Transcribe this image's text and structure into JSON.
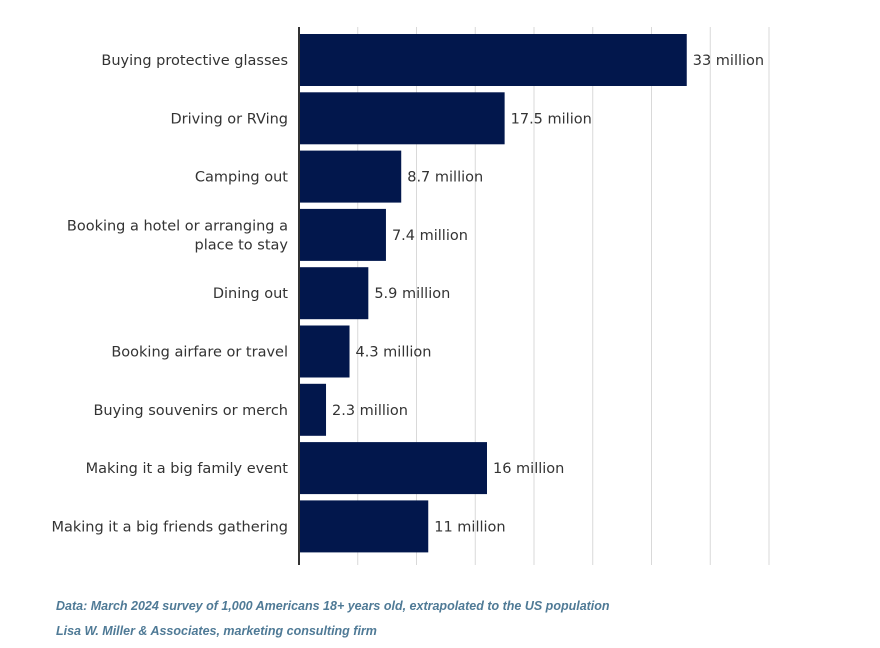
{
  "chart_data": {
    "type": "bar",
    "orientation": "horizontal",
    "categories": [
      [
        "Buying protective glasses"
      ],
      [
        "Driving or RVing"
      ],
      [
        "Camping out"
      ],
      [
        "Booking a hotel or arranging a",
        "place to stay"
      ],
      [
        "Dining out"
      ],
      [
        "Booking airfare or travel"
      ],
      [
        "Buying souvenirs or merch"
      ],
      [
        "Making it a big family event"
      ],
      [
        "Making it a big friends gathering"
      ]
    ],
    "values": [
      33,
      17.5,
      8.7,
      7.4,
      5.9,
      4.3,
      2.3,
      16,
      11
    ],
    "data_labels": [
      "33 million",
      "17.5 milion",
      "8.7 million",
      "7.4 million",
      "5.9 million",
      "4.3 million",
      "2.3 million",
      "16 million",
      "11 million"
    ],
    "unit": "million",
    "xlim": [
      0,
      40
    ],
    "grid_step": 5,
    "grid": true,
    "bar_color": "#02174c",
    "grid_color": "#d9d9d9"
  },
  "footer": {
    "source": "Data: March 2024 survey of 1,000 Americans 18+ years old, extrapolated to the US population",
    "credit": "Lisa W. Miller & Associates, marketing consulting firm"
  }
}
